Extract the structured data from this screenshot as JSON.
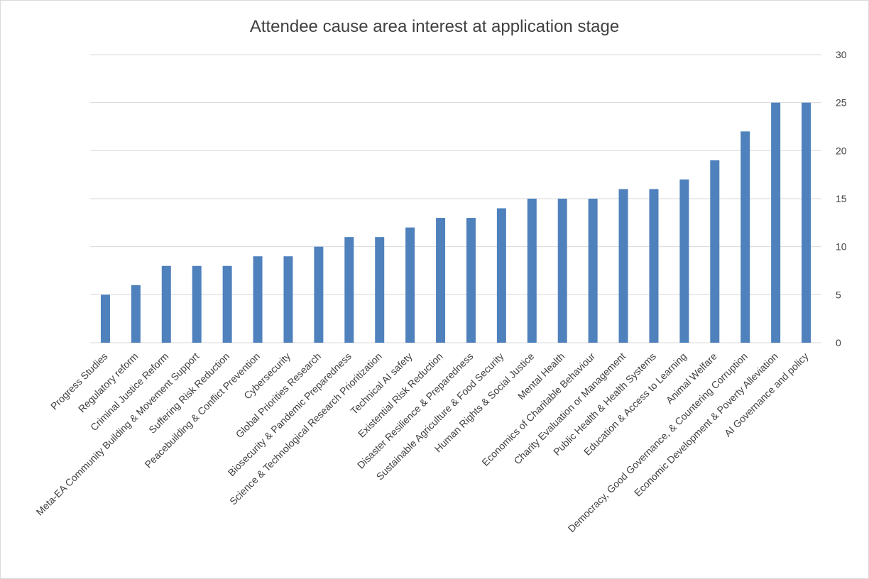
{
  "chart_data": {
    "type": "bar",
    "title": "Attendee cause area interest at application stage",
    "xlabel": "",
    "ylabel": "",
    "ylim": [
      0,
      30
    ],
    "yticks": [
      0,
      5,
      10,
      15,
      20,
      25,
      30
    ],
    "y_axis_side": "right",
    "grid": true,
    "legend": "none",
    "bar_color": "#4f81bd",
    "categories": [
      "Progress Studies",
      "Regulatory reform",
      "Criminal Justice Reform",
      "Meta-EA Community Building & Movement Support",
      "Suffering Risk Reduction",
      "Peacebuilding & Conflict Prevention",
      "Cybersecurity",
      "Global Priorities Research",
      "Biosecurity & Pandemic Preparedness",
      "Science & Technological Research Prioritization",
      "Technical AI safety",
      "Existential Risk Reduction",
      "Disaster Resilience & Preparedness",
      "Sustainable Agriculture & Food Security",
      "Human Rights & Social Justice",
      "Mental Health",
      "Economics of Charitable Behaviour",
      "Charity Evaluation or Management",
      "Public Health & Health Systems",
      "Education & Access to Learning",
      "Animal Welfare",
      "Democracy, Good Governance, & Countering Corruption",
      "Economic Development & Poverty Alleviation",
      "AI Governance and policy"
    ],
    "values": [
      5,
      6,
      8,
      8,
      8,
      9,
      9,
      10,
      11,
      11,
      12,
      13,
      13,
      14,
      15,
      15,
      15,
      16,
      16,
      17,
      19,
      22,
      25,
      25
    ]
  }
}
